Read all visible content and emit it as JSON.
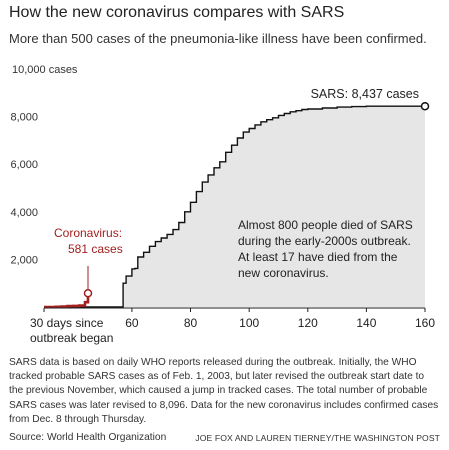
{
  "title": "How the new coronavirus compares with SARS",
  "subtitle": "More than 500 cases of the pneumonia-like illness have been confirmed.",
  "note": "SARS data is based on daily WHO reports released during the outbreak. Initially, the WHO tracked probable SARS cases as of Feb. 1, 2003, but later revised the outbreak start date to the previous November, which caused a jump in tracked cases. The total number of probable SARS cases was later revised to 8,096. Data for the new coronavirus includes confirmed cases from Dec. 8 through Thursday.",
  "source": "Source: World Health Organization",
  "credit": "JOE FOX AND LAUREN TIERNEY/THE WASHINGTON POST",
  "colors": {
    "sars_fill": "#e6e6e6",
    "sars_line": "#111111",
    "corona": "#a32020",
    "axis": "#222222"
  },
  "chart_data": {
    "type": "area",
    "title": "How the new coronavirus compares with SARS",
    "xlabel": "",
    "ylabel": "",
    "xlim": [
      30,
      160
    ],
    "ylim": [
      0,
      10000
    ],
    "grid": false,
    "x_ticks": [
      {
        "value": 30,
        "label": "30 days since outbreak began"
      },
      {
        "value": 60,
        "label": "60"
      },
      {
        "value": 80,
        "label": "80"
      },
      {
        "value": 100,
        "label": "100"
      },
      {
        "value": 120,
        "label": "120"
      },
      {
        "value": 140,
        "label": "140"
      },
      {
        "value": 160,
        "label": "160"
      }
    ],
    "y_ticks": [
      {
        "value": 2000,
        "label": "2,000"
      },
      {
        "value": 4000,
        "label": "4,000"
      },
      {
        "value": 6000,
        "label": "6,000"
      },
      {
        "value": 8000,
        "label": "8,000"
      },
      {
        "value": 10000,
        "label": "10,000 cases"
      }
    ],
    "series": [
      {
        "name": "SARS",
        "label": "SARS:  8,437 cases",
        "x": [
          30,
          44,
          50,
          52,
          54,
          56,
          57,
          58,
          60,
          61,
          62,
          64,
          66,
          68,
          70,
          72,
          74,
          76,
          78,
          80,
          82,
          84,
          86,
          88,
          90,
          92,
          94,
          96,
          98,
          100,
          102,
          104,
          106,
          108,
          110,
          112,
          114,
          116,
          118,
          120,
          125,
          130,
          135,
          140,
          145,
          150,
          155,
          160
        ],
        "y": [
          0,
          0,
          0,
          0,
          0,
          0,
          1000,
          1300,
          1600,
          1620,
          2100,
          2300,
          2550,
          2750,
          2900,
          3050,
          3250,
          3550,
          4000,
          4400,
          4850,
          5250,
          5550,
          5850,
          6100,
          6500,
          6800,
          7100,
          7350,
          7500,
          7650,
          7780,
          7870,
          7950,
          8050,
          8130,
          8200,
          8250,
          8300,
          8320,
          8360,
          8400,
          8420,
          8437,
          8437,
          8437,
          8437,
          8437
        ]
      },
      {
        "name": "Coronavirus",
        "label": "Coronavirus:",
        "value_label": "581 cases",
        "x": [
          30,
          32,
          34,
          36,
          38,
          40,
          42,
          44,
          45
        ],
        "y": [
          0,
          0,
          10,
          20,
          40,
          45,
          60,
          200,
          581
        ]
      }
    ],
    "annotations": [
      {
        "text": "Almost 800 people died of SARS during the early-2000s outbreak. At least 17 have died from the new coronavirus."
      }
    ]
  }
}
